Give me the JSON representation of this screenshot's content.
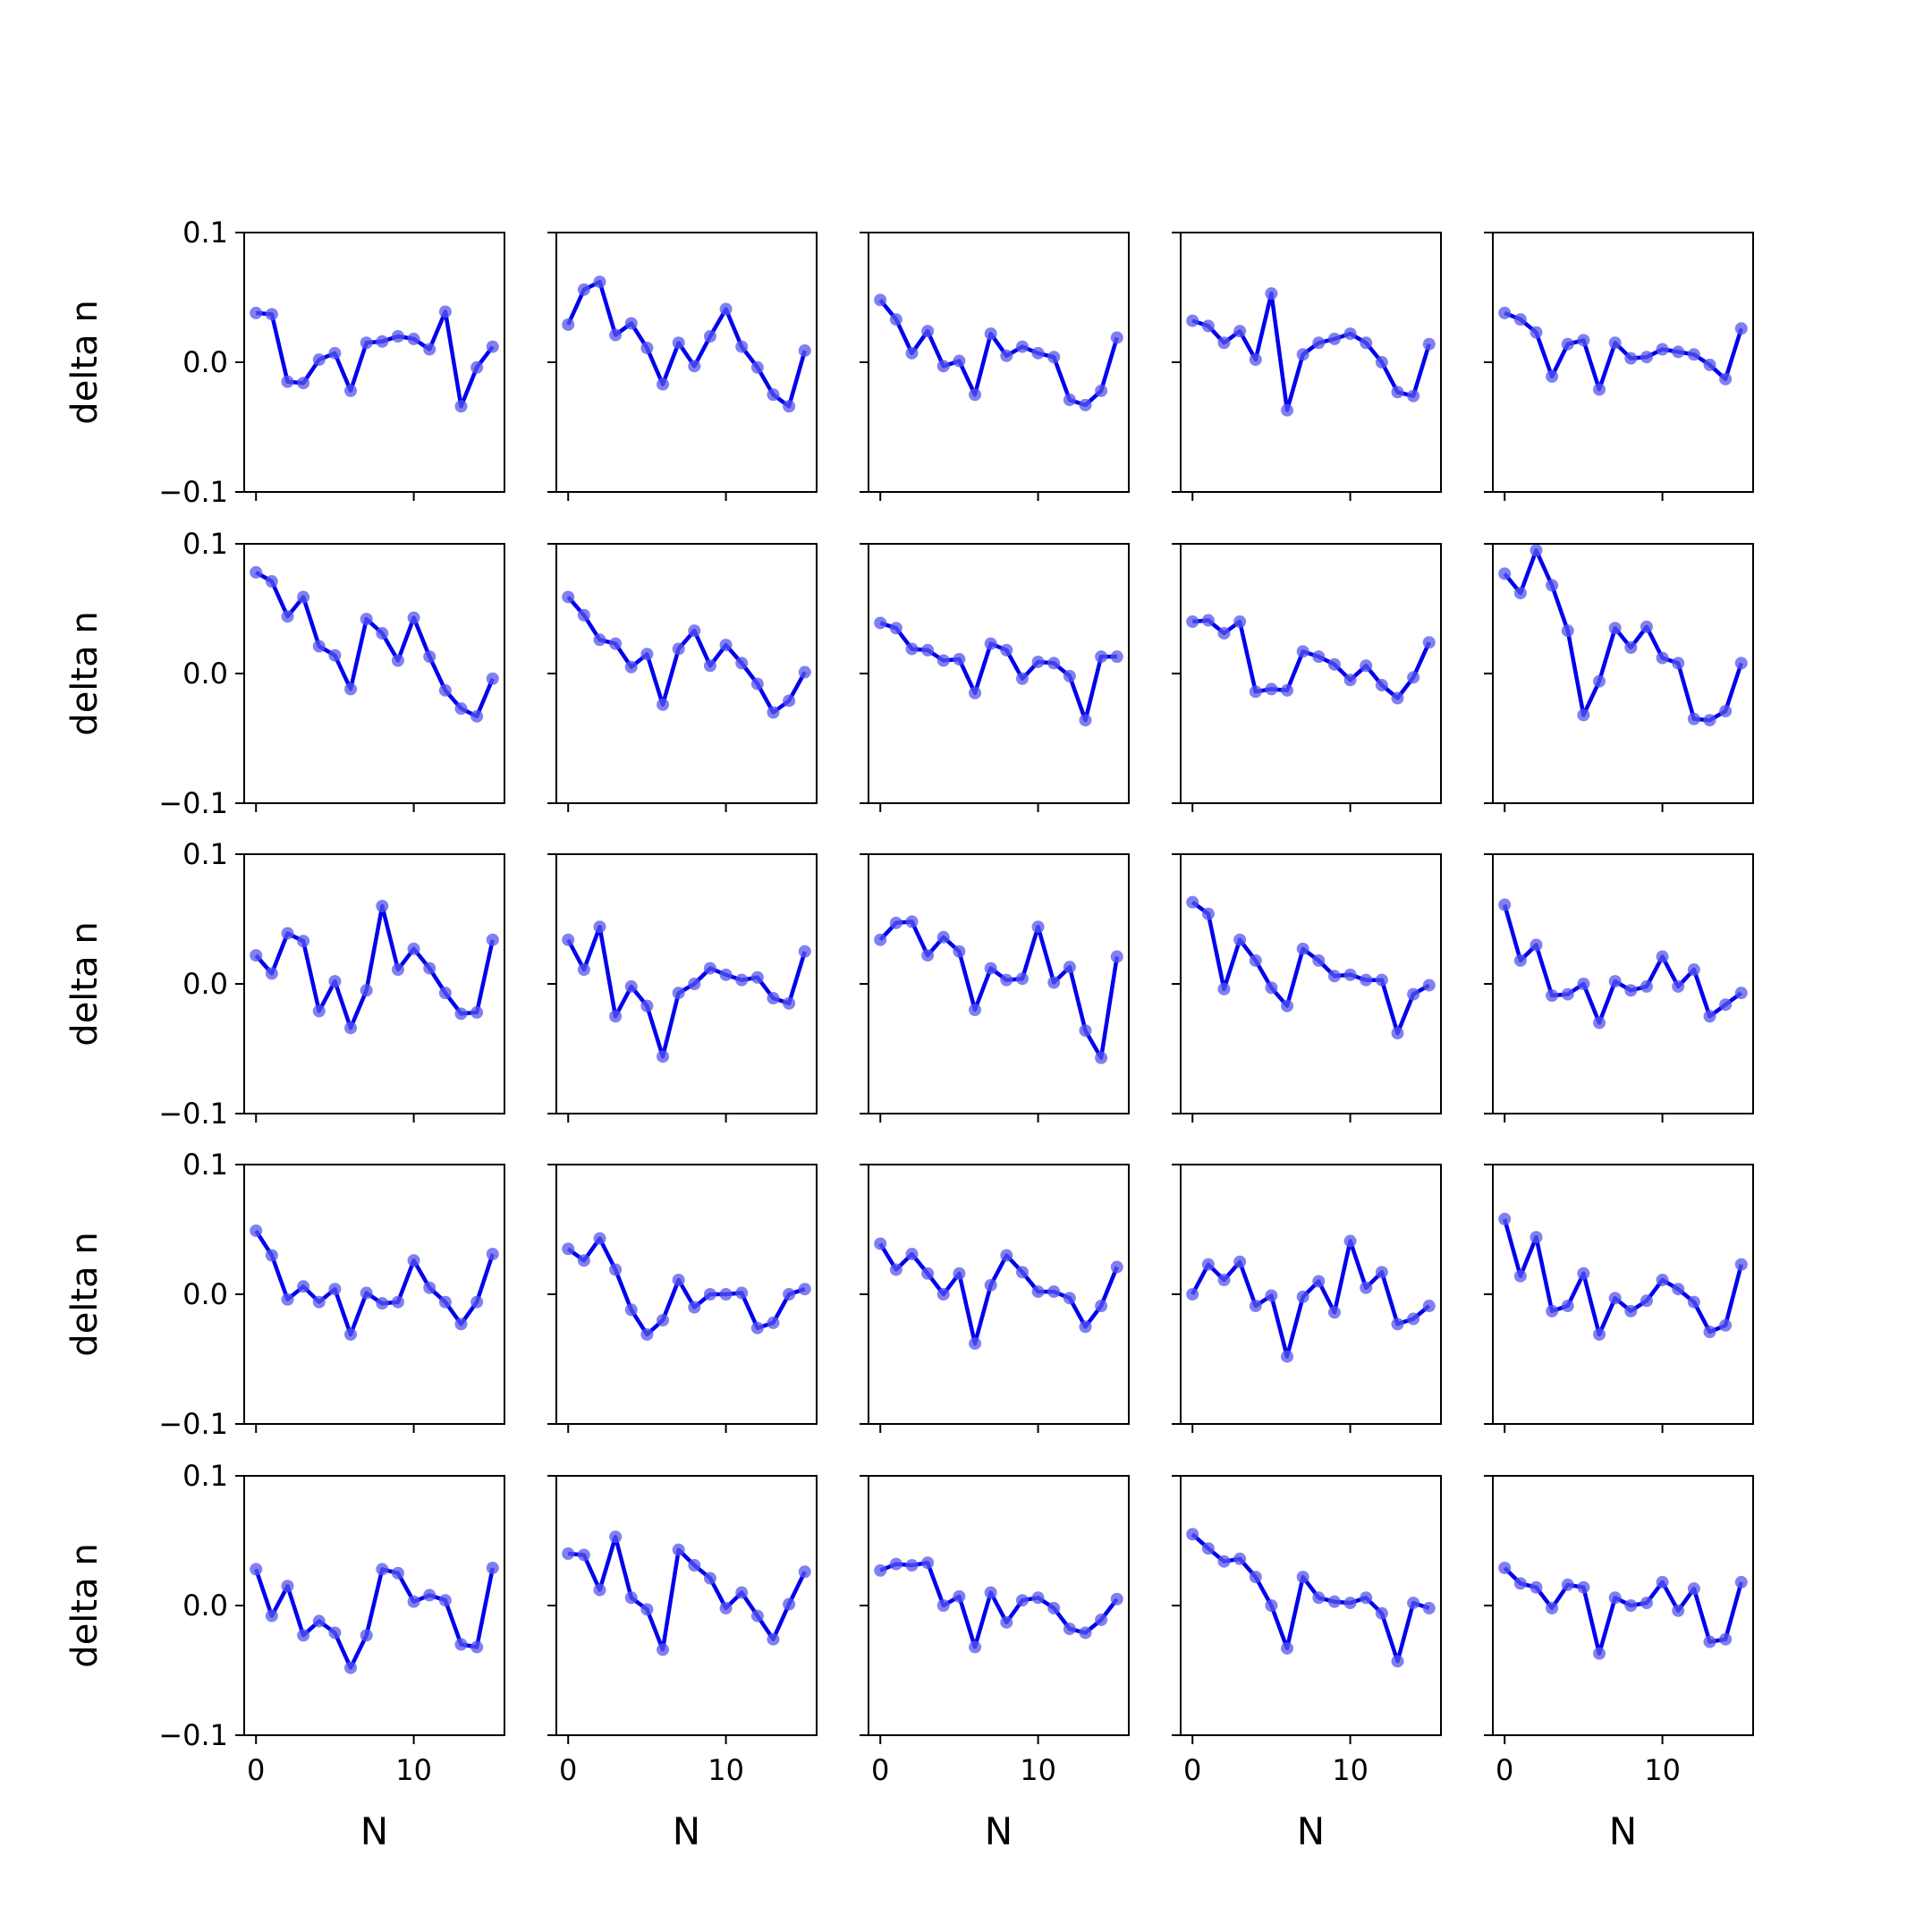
{
  "figure": {
    "line_color": "#0000ee",
    "marker_color": "#5555ee"
  },
  "chart_data": {
    "type": "line",
    "layout": "5x5 grid of small multiples, shared axes",
    "xlabel": "N",
    "ylabel": "delta n",
    "xlim": [
      -0.75,
      15.75
    ],
    "ylim": [
      -0.1,
      0.1
    ],
    "yticks": [
      -0.1,
      0.0,
      0.1
    ],
    "ytick_labels": [
      "−0.1",
      "0.0",
      "0.1"
    ],
    "xticks": [
      0,
      10
    ],
    "xtick_labels": [
      "0",
      "10"
    ],
    "x": [
      0,
      1,
      2,
      3,
      4,
      5,
      6,
      7,
      8,
      9,
      10,
      11,
      12,
      13,
      14,
      15
    ],
    "grid": false,
    "legend": "none",
    "panels": [
      {
        "values": [
          0.038,
          0.037,
          -0.015,
          -0.016,
          0.002,
          0.007,
          -0.022,
          0.015,
          0.016,
          0.02,
          0.018,
          0.01,
          0.039,
          -0.034,
          -0.004,
          0.012
        ]
      },
      {
        "values": [
          0.029,
          0.056,
          0.062,
          0.021,
          0.03,
          0.011,
          -0.017,
          0.015,
          -0.003,
          0.02,
          0.041,
          0.012,
          -0.004,
          -0.025,
          -0.034,
          0.009
        ]
      },
      {
        "values": [
          0.048,
          0.033,
          0.007,
          0.024,
          -0.003,
          0.001,
          -0.025,
          0.022,
          0.005,
          0.012,
          0.007,
          0.004,
          -0.029,
          -0.033,
          -0.022,
          0.019
        ]
      },
      {
        "values": [
          0.032,
          0.028,
          0.015,
          0.024,
          0.002,
          0.053,
          -0.037,
          0.006,
          0.015,
          0.018,
          0.022,
          0.015,
          0.0,
          -0.023,
          -0.026,
          0.014
        ]
      },
      {
        "values": [
          0.038,
          0.033,
          0.023,
          -0.011,
          0.014,
          0.017,
          -0.021,
          0.015,
          0.003,
          0.004,
          0.01,
          0.008,
          0.006,
          -0.002,
          -0.013,
          0.026
        ]
      },
      {
        "values": [
          0.078,
          0.071,
          0.044,
          0.059,
          0.021,
          0.014,
          -0.012,
          0.042,
          0.031,
          0.01,
          0.043,
          0.013,
          -0.013,
          -0.027,
          -0.033,
          -0.004
        ]
      },
      {
        "values": [
          0.059,
          0.045,
          0.026,
          0.023,
          0.005,
          0.015,
          -0.024,
          0.019,
          0.033,
          0.006,
          0.022,
          0.008,
          -0.008,
          -0.03,
          -0.021,
          0.001
        ]
      },
      {
        "values": [
          0.039,
          0.035,
          0.019,
          0.018,
          0.01,
          0.011,
          -0.015,
          0.023,
          0.018,
          -0.004,
          0.009,
          0.008,
          -0.002,
          -0.036,
          0.013,
          0.013
        ]
      },
      {
        "values": [
          0.04,
          0.041,
          0.031,
          0.04,
          -0.014,
          -0.012,
          -0.013,
          0.017,
          0.013,
          0.007,
          -0.005,
          0.006,
          -0.009,
          -0.019,
          -0.003,
          0.024
        ]
      },
      {
        "values": [
          0.077,
          0.062,
          0.095,
          0.068,
          0.033,
          -0.032,
          -0.006,
          0.035,
          0.02,
          0.036,
          0.012,
          0.008,
          -0.035,
          -0.036,
          -0.029,
          0.008
        ]
      },
      {
        "values": [
          0.022,
          0.008,
          0.039,
          0.033,
          -0.021,
          0.002,
          -0.034,
          -0.005,
          0.06,
          0.011,
          0.027,
          0.012,
          -0.007,
          -0.023,
          -0.022,
          0.034
        ]
      },
      {
        "values": [
          0.034,
          0.011,
          0.044,
          -0.025,
          -0.002,
          -0.017,
          -0.056,
          -0.007,
          0.0,
          0.012,
          0.007,
          0.003,
          0.005,
          -0.011,
          -0.015,
          0.025
        ]
      },
      {
        "values": [
          0.034,
          0.047,
          0.048,
          0.022,
          0.036,
          0.025,
          -0.02,
          0.012,
          0.003,
          0.004,
          0.044,
          0.001,
          0.013,
          -0.036,
          -0.057,
          0.021
        ]
      },
      {
        "values": [
          0.063,
          0.054,
          -0.004,
          0.034,
          0.018,
          -0.003,
          -0.017,
          0.027,
          0.018,
          0.006,
          0.007,
          0.003,
          0.003,
          -0.038,
          -0.008,
          -0.001
        ]
      },
      {
        "values": [
          0.061,
          0.018,
          0.03,
          -0.009,
          -0.008,
          0.0,
          -0.03,
          0.002,
          -0.005,
          -0.002,
          0.021,
          -0.002,
          0.011,
          -0.025,
          -0.016,
          -0.007
        ]
      },
      {
        "values": [
          0.049,
          0.03,
          -0.004,
          0.006,
          -0.006,
          0.004,
          -0.031,
          0.001,
          -0.007,
          -0.006,
          0.026,
          0.005,
          -0.006,
          -0.023,
          -0.006,
          0.031
        ]
      },
      {
        "values": [
          0.035,
          0.026,
          0.043,
          0.019,
          -0.012,
          -0.031,
          -0.02,
          0.011,
          -0.01,
          0.0,
          0.0,
          0.001,
          -0.026,
          -0.022,
          0.0,
          0.004
        ]
      },
      {
        "values": [
          0.039,
          0.019,
          0.031,
          0.016,
          0.0,
          0.016,
          -0.038,
          0.007,
          0.03,
          0.017,
          0.002,
          0.002,
          -0.003,
          -0.025,
          -0.009,
          0.021
        ]
      },
      {
        "values": [
          0.0,
          0.023,
          0.011,
          0.025,
          -0.009,
          -0.001,
          -0.048,
          -0.002,
          0.01,
          -0.014,
          0.041,
          0.005,
          0.017,
          -0.023,
          -0.019,
          -0.009
        ]
      },
      {
        "values": [
          0.058,
          0.014,
          0.044,
          -0.013,
          -0.009,
          0.016,
          -0.031,
          -0.003,
          -0.013,
          -0.005,
          0.011,
          0.004,
          -0.006,
          -0.029,
          -0.024,
          0.023
        ]
      },
      {
        "values": [
          0.028,
          -0.008,
          0.015,
          -0.023,
          -0.012,
          -0.021,
          -0.048,
          -0.023,
          0.028,
          0.025,
          0.003,
          0.008,
          0.004,
          -0.03,
          -0.032,
          0.029
        ]
      },
      {
        "values": [
          0.04,
          0.039,
          0.012,
          0.053,
          0.006,
          -0.003,
          -0.034,
          0.043,
          0.031,
          0.021,
          -0.002,
          0.01,
          -0.008,
          -0.026,
          0.001,
          0.026
        ]
      },
      {
        "values": [
          0.027,
          0.032,
          0.031,
          0.033,
          0.0,
          0.007,
          -0.032,
          0.01,
          -0.013,
          0.004,
          0.006,
          -0.002,
          -0.018,
          -0.021,
          -0.011,
          0.005
        ]
      },
      {
        "values": [
          0.055,
          0.044,
          0.034,
          0.036,
          0.022,
          0.0,
          -0.033,
          0.022,
          0.006,
          0.003,
          0.002,
          0.006,
          -0.006,
          -0.043,
          0.002,
          -0.002
        ]
      },
      {
        "values": [
          0.029,
          0.017,
          0.014,
          -0.002,
          0.016,
          0.014,
          -0.037,
          0.006,
          0.0,
          0.002,
          0.018,
          -0.004,
          0.013,
          -0.028,
          -0.026,
          0.018
        ]
      }
    ]
  }
}
